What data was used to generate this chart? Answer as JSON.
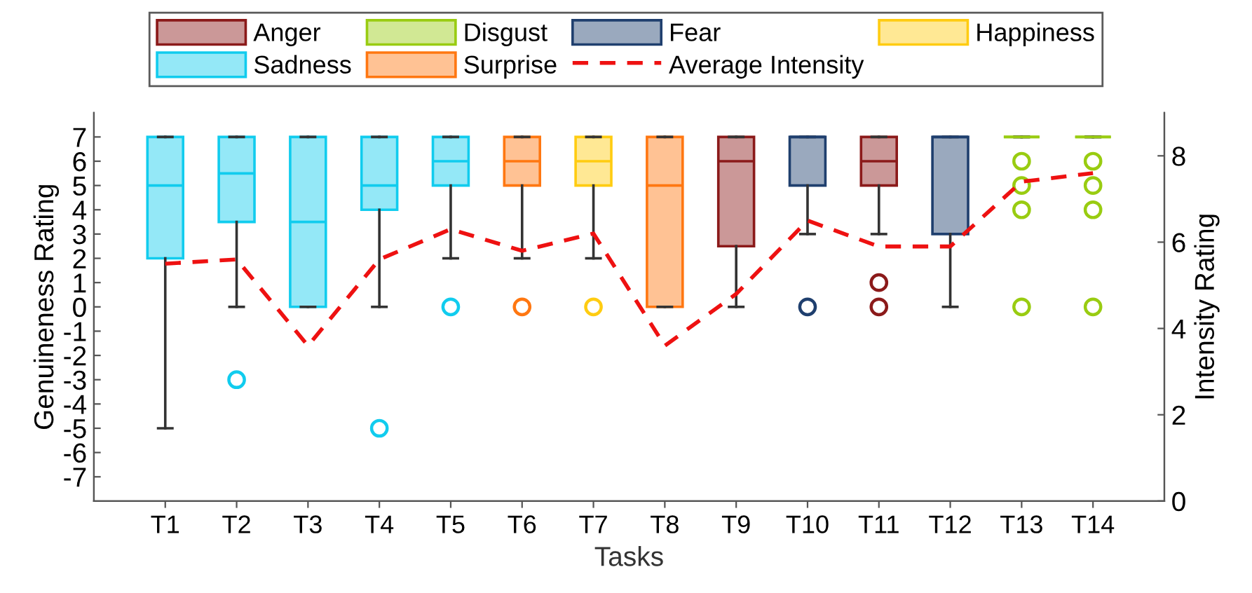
{
  "chart_data": {
    "type": "box",
    "xlabel": "Tasks",
    "ylabel": "Genuineness Rating",
    "y2label": "Intensity Rating",
    "categories": [
      "T1",
      "T2",
      "T3",
      "T4",
      "T5",
      "T6",
      "T7",
      "T8",
      "T9",
      "T10",
      "T11",
      "T12",
      "T13",
      "T14"
    ],
    "ylim": [
      -8,
      8
    ],
    "yticks": [
      -7,
      -6,
      -5,
      -4,
      -3,
      -2,
      -1,
      0,
      1,
      2,
      3,
      4,
      5,
      6,
      7
    ],
    "y2lim": [
      0,
      9
    ],
    "y2ticks": [
      0,
      2,
      4,
      6,
      8
    ],
    "legend": "top",
    "grid": false,
    "series": [
      {
        "name": "Anger",
        "color": "#8b1a1a",
        "marker": "circle",
        "boxes": [
          null,
          null,
          null,
          null,
          null,
          null,
          null,
          null,
          {
            "low": 0,
            "q1": 2.5,
            "median": 6,
            "q3": 7,
            "high": 7
          },
          null,
          {
            "low": 3,
            "q1": 5,
            "median": 6,
            "q3": 7,
            "high": 7,
            "outliers": [
              1,
              0
            ]
          },
          null,
          null,
          null
        ]
      },
      {
        "name": "Disgust",
        "color": "#99cc11",
        "marker": "circle",
        "boxes": [
          null,
          null,
          null,
          null,
          null,
          null,
          null,
          null,
          null,
          null,
          null,
          null,
          {
            "low": 7,
            "q1": 7,
            "median": 7,
            "q3": 7,
            "high": 7,
            "outliers": [
              6,
              5,
              4,
              0
            ]
          },
          {
            "low": 7,
            "q1": 7,
            "median": 7,
            "q3": 7,
            "high": 7,
            "outliers": [
              6,
              5,
              4,
              0
            ]
          }
        ]
      },
      {
        "name": "Fear",
        "color": "#1f3f6e",
        "marker": "circle",
        "boxes": [
          null,
          null,
          null,
          null,
          null,
          null,
          null,
          null,
          null,
          {
            "low": 3,
            "q1": 5,
            "median": 7,
            "q3": 7,
            "high": 7,
            "outliers": [
              0
            ]
          },
          null,
          {
            "low": 0,
            "q1": 3,
            "median": 7,
            "q3": 7,
            "high": 7
          },
          null,
          null
        ]
      },
      {
        "name": "Happiness",
        "color": "#ffcc11",
        "marker": "circle",
        "boxes": [
          null,
          null,
          null,
          null,
          null,
          null,
          {
            "low": 2,
            "q1": 5,
            "median": 6,
            "q3": 7,
            "high": 7,
            "outliers": [
              0
            ]
          },
          null,
          null,
          null,
          null,
          null,
          null,
          null
        ]
      },
      {
        "name": "Sadness",
        "color": "#11ccee",
        "marker": "circle",
        "boxes": [
          {
            "low": -5,
            "q1": 2,
            "median": 5,
            "q3": 7,
            "high": 7
          },
          {
            "low": 0,
            "q1": 3.5,
            "median": 5.5,
            "q3": 7,
            "high": 7,
            "outliers": [
              -3
            ]
          },
          {
            "low": 0,
            "q1": 0,
            "median": 3.5,
            "q3": 7,
            "high": 7
          },
          {
            "low": 0,
            "q1": 4,
            "median": 5,
            "q3": 7,
            "high": 7,
            "outliers": [
              -5
            ]
          },
          {
            "low": 2,
            "q1": 5,
            "median": 6,
            "q3": 7,
            "high": 7,
            "outliers": [
              0
            ]
          },
          null,
          null,
          null,
          null,
          null,
          null,
          null,
          null,
          null
        ]
      },
      {
        "name": "Surprise",
        "color": "#ff7711",
        "marker": "circle",
        "boxes": [
          null,
          null,
          null,
          null,
          null,
          {
            "low": 2,
            "q1": 5,
            "median": 6,
            "q3": 7,
            "high": 7,
            "outliers": [
              0
            ]
          },
          null,
          {
            "low": 0,
            "q1": 0,
            "median": 5,
            "q3": 7,
            "high": 7
          },
          null,
          null,
          null,
          null,
          null,
          null
        ]
      },
      {
        "name": "Average Intensity",
        "type": "line",
        "axis": "y2",
        "color": "#ee1111",
        "line_style": "dashed",
        "marker": "none",
        "values": [
          5.5,
          5.6,
          3.6,
          5.6,
          6.3,
          5.8,
          6.2,
          3.6,
          4.8,
          6.5,
          5.9,
          5.9,
          7.4,
          7.6
        ]
      }
    ]
  }
}
